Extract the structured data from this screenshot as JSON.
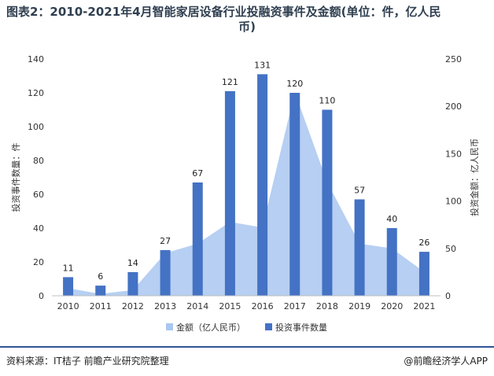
{
  "title": {
    "line1": "图表2：2010-2021年4月智能家居设备行业投融资事件及金额(单位：件，亿人民",
    "line2": "币)"
  },
  "footer": {
    "source": "资料来源：IT桔子 前瞻产业研究院整理",
    "copyright": "@前瞻经济学人APP"
  },
  "chart_data": {
    "type": "bar",
    "categories": [
      "2010",
      "2011",
      "2012",
      "2013",
      "2014",
      "2015",
      "2016",
      "2017",
      "2018",
      "2019",
      "2020",
      "2021"
    ],
    "series": [
      {
        "name": "金额（亿人民币）",
        "type": "area",
        "axis": "right",
        "color": "#a9c7f0",
        "values": [
          8,
          2,
          6,
          45,
          55,
          78,
          72,
          215,
          120,
          55,
          50,
          25
        ]
      },
      {
        "name": "投资事件数量",
        "type": "bar",
        "axis": "left",
        "color": "#4472c4",
        "values": [
          11,
          6,
          14,
          27,
          67,
          121,
          131,
          120,
          110,
          57,
          40,
          26
        ]
      }
    ],
    "ylabel": "投资事件数量：件",
    "y2label": "投资金额：亿人民币",
    "ylim": [
      0,
      140
    ],
    "y2lim": [
      0,
      250
    ],
    "yticks": [
      "0",
      "20",
      "40",
      "60",
      "80",
      "100",
      "120",
      "140"
    ],
    "y2ticks": [
      "0",
      "50",
      "100",
      "150",
      "200",
      "250"
    ],
    "grid": false,
    "legend": "bottom"
  }
}
